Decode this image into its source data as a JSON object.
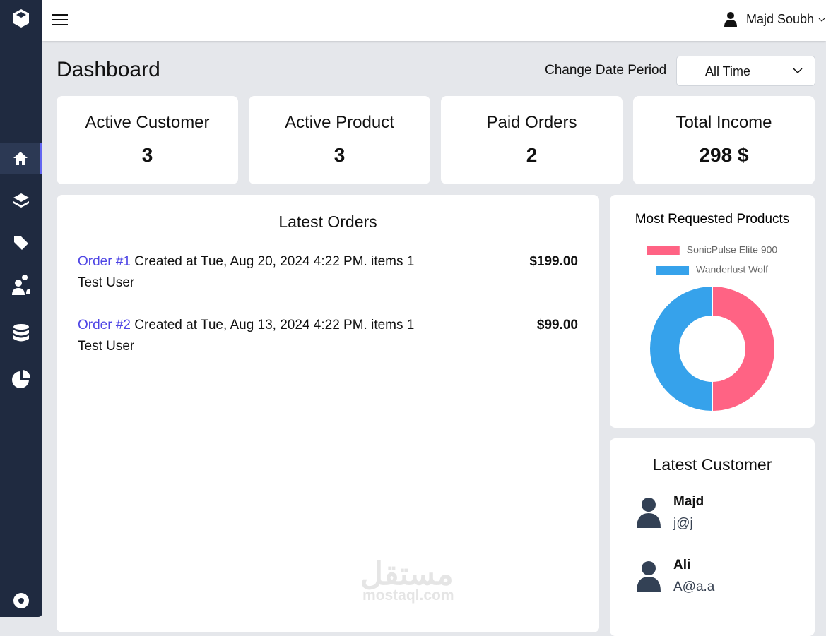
{
  "header": {
    "user_name": "Majd Soubh"
  },
  "dashboard": {
    "title": "Dashboard",
    "period_label": "Change Date Period",
    "period_value": "All Time"
  },
  "stats": [
    {
      "label": "Active Customer",
      "value": 3
    },
    {
      "label": "Active Product",
      "value": 3
    },
    {
      "label": "Paid Orders",
      "value": 2
    },
    {
      "label": "Total Income",
      "value": "298 $"
    }
  ],
  "latest_orders": {
    "title": "Latest Orders",
    "orders": [
      {
        "link": "Order #1",
        "details": "Created at Tue, Aug 20, 2024 4:22 PM. items 1",
        "customer": "Test User",
        "total": "$199.00"
      },
      {
        "link": "Order #2",
        "details": "Created at Tue, Aug 13, 2024 4:22 PM. items 1",
        "customer": "Test User",
        "total": "$99.00"
      }
    ]
  },
  "chart_data": {
    "type": "doughnut",
    "title": "Most Requested Products",
    "categories": [
      "SonicPulse Elite 900",
      "Wanderlust Wolf"
    ],
    "values": [
      1,
      1
    ],
    "colors": [
      "#ff6384",
      "#36a2eb"
    ]
  },
  "latest_customers": {
    "title": "Latest Customer",
    "customers": [
      {
        "name": "Majd",
        "email": "j@j"
      },
      {
        "name": "Ali",
        "email": "A@a.a"
      }
    ]
  },
  "watermark": {
    "arabic": "مستقل",
    "site": "mostaql.com"
  }
}
